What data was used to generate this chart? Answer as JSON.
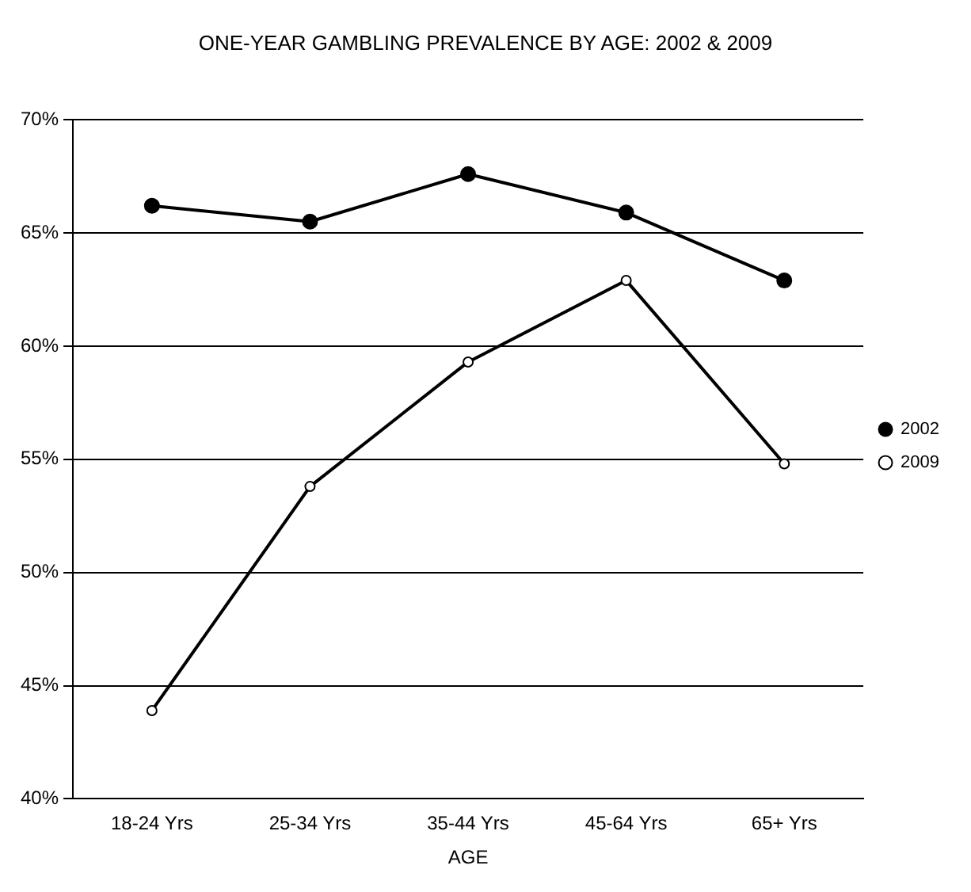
{
  "chart_data": {
    "type": "line",
    "title": "ONE-YEAR GAMBLING PREVALENCE BY AGE: 2002 & 2009",
    "xlabel": "AGE",
    "categories": [
      "18-24 Yrs",
      "25-34 Yrs",
      "35-44 Yrs",
      "45-64 Yrs",
      "65+ Yrs"
    ],
    "series": [
      {
        "name": "2002",
        "color": "#000000",
        "values": [
          66.2,
          65.5,
          67.6,
          65.9,
          62.9
        ]
      },
      {
        "name": "2009",
        "color": "#000000",
        "values": [
          43.9,
          53.8,
          59.3,
          62.9,
          54.8
        ]
      }
    ],
    "ylim": [
      40,
      70
    ],
    "yticks": [
      {
        "value": 40,
        "label": "40%"
      },
      {
        "value": 45,
        "label": "45%"
      },
      {
        "value": 50,
        "label": "50%"
      },
      {
        "value": 55,
        "label": "55%"
      },
      {
        "value": 60,
        "label": "60%"
      },
      {
        "value": 65,
        "label": "65%"
      },
      {
        "value": 70,
        "label": "70%"
      }
    ],
    "grid": "y",
    "legend": "right",
    "marker": "circle",
    "line_style": "solid"
  }
}
